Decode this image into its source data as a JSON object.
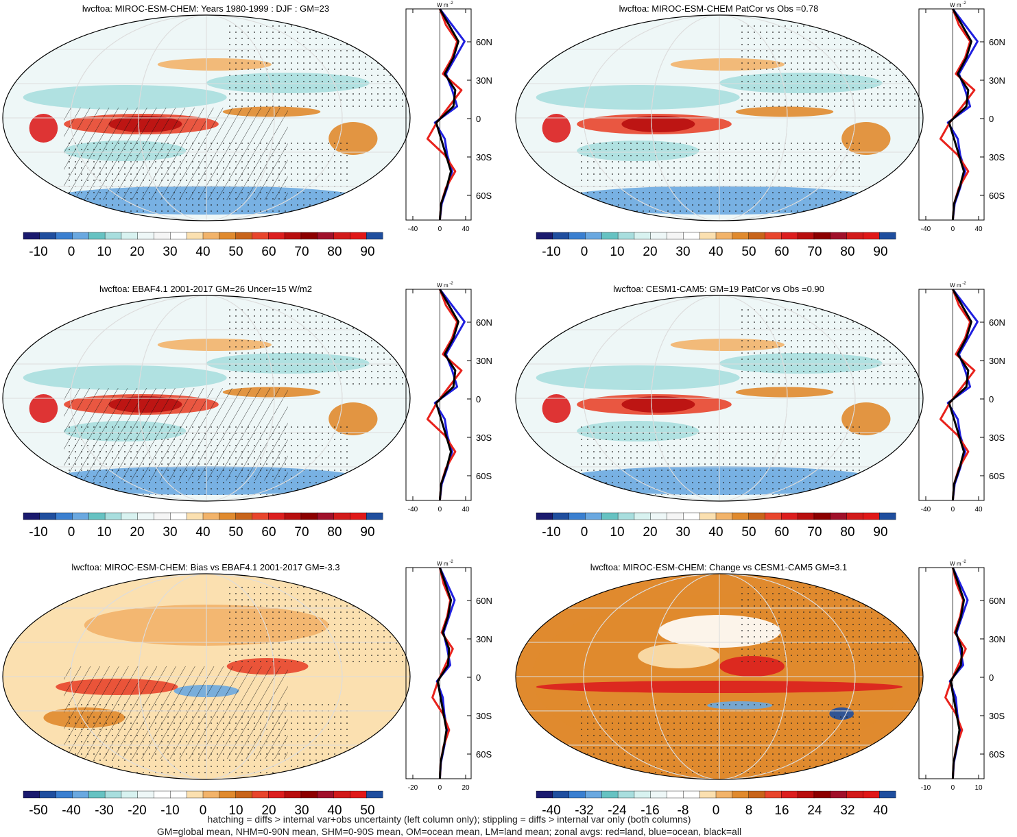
{
  "panels": [
    {
      "title": "lwcftoa: MIROC-ESM-CHEM: Years 1980-1999 : DJF : GM=23",
      "colorbar_labels": [
        "-10",
        "0",
        "10",
        "20",
        "30",
        "40",
        "50",
        "60",
        "70",
        "80",
        "90"
      ],
      "zonal_ticks": [
        "-40",
        "0",
        "40"
      ],
      "zonal_unit": "W m",
      "zonal_unit_exp": "-2",
      "lat_labels": [
        "60N",
        "30N",
        "0",
        "30S",
        "60S"
      ],
      "hatching": true
    },
    {
      "title": "lwcftoa: MIROC-ESM-CHEM PatCor vs Obs =0.78",
      "colorbar_labels": [
        "-10",
        "0",
        "10",
        "20",
        "30",
        "40",
        "50",
        "60",
        "70",
        "80",
        "90"
      ],
      "zonal_ticks": [
        "-40",
        "0",
        "40"
      ],
      "zonal_unit": "W m",
      "zonal_unit_exp": "-2",
      "lat_labels": [
        "60N",
        "30N",
        "0",
        "30S",
        "60S"
      ],
      "hatching": false
    },
    {
      "title": "lwcftoa: EBAF4.1 2001-2017 GM=26 Uncer=15 W/m2",
      "colorbar_labels": [
        "-10",
        "0",
        "10",
        "20",
        "30",
        "40",
        "50",
        "60",
        "70",
        "80",
        "90"
      ],
      "zonal_ticks": [
        "-40",
        "0",
        "40"
      ],
      "zonal_unit": "W m",
      "zonal_unit_exp": "-2",
      "lat_labels": [
        "60N",
        "30N",
        "0",
        "30S",
        "60S"
      ],
      "hatching": true
    },
    {
      "title": "lwcftoa: CESM1-CAM5: GM=19 PatCor vs Obs =0.90",
      "colorbar_labels": [
        "-10",
        "0",
        "10",
        "20",
        "30",
        "40",
        "50",
        "60",
        "70",
        "80",
        "90"
      ],
      "zonal_ticks": [
        "-40",
        "0",
        "40"
      ],
      "zonal_unit": "W m",
      "zonal_unit_exp": "-2",
      "lat_labels": [
        "60N",
        "30N",
        "0",
        "30S",
        "60S"
      ],
      "hatching": false
    },
    {
      "title": "lwcftoa: MIROC-ESM-CHEM: Bias vs EBAF4.1 2001-2017 GM=-3.3",
      "colorbar_labels": [
        "-50",
        "-40",
        "-30",
        "-20",
        "-10",
        "0",
        "10",
        "20",
        "30",
        "40",
        "50"
      ],
      "zonal_ticks": [
        "-20",
        "0",
        "20"
      ],
      "zonal_unit": "W m",
      "zonal_unit_exp": "-2",
      "lat_labels": [
        "60N",
        "30N",
        "0",
        "30S",
        "60S"
      ],
      "hatching": true
    },
    {
      "title": "lwcftoa: MIROC-ESM-CHEM: Change vs CESM1-CAM5 GM=3.1",
      "colorbar_labels": [
        "-40",
        "-32",
        "-24",
        "-16",
        "-8",
        "0",
        "8",
        "16",
        "24",
        "32",
        "40"
      ],
      "zonal_ticks": [
        "-10",
        "0",
        "10"
      ],
      "zonal_unit": "W m",
      "zonal_unit_exp": "-2",
      "lat_labels": [
        "60N",
        "30N",
        "0",
        "30S",
        "60S"
      ],
      "hatching": false
    }
  ],
  "colors": {
    "abs_scale": [
      "#1a1a6e",
      "#1f4e9e",
      "#3a7fd0",
      "#6aa8e0",
      "#66c2c2",
      "#a8dede",
      "#d8f2f0",
      "#eef7f7",
      "#f5f5f5",
      "#ffffff",
      "#fbe0b0",
      "#f2b36a",
      "#e08a2e",
      "#c8641a",
      "#e8452c",
      "#dc1e1e",
      "#b80e0e",
      "#8c0000",
      "#a0102a",
      "#d21a1a",
      "#e01818",
      "#1f4e9e"
    ],
    "diff_scale": [
      "#1a1a6e",
      "#1f4e9e",
      "#3a7fd0",
      "#6aa8e0",
      "#66c2c2",
      "#a8dede",
      "#d8f2f0",
      "#eef7f7",
      "#ffffff",
      "#ffffff",
      "#fbe0b0",
      "#f2b36a",
      "#e08a2e",
      "#c8641a",
      "#e8452c",
      "#dc1e1e",
      "#b80e0e",
      "#8c0000",
      "#a0102a",
      "#d21a1a",
      "#e01818",
      "#1f4e9e"
    ],
    "land_line": "#e8221c",
    "ocean_line": "#1f1fe0",
    "all_line": "#000000"
  },
  "footer": {
    "line1": "hatching = diffs > internal var+obs uncertainty (left column only); stippling = diffs > internal var only (both columns)",
    "line2": "GM=global mean, NHM=0-90N mean, SHM=0-90S mean, OM=ocean mean, LM=land mean; zonal avgs: red=land, blue=ocean, black=all"
  }
}
